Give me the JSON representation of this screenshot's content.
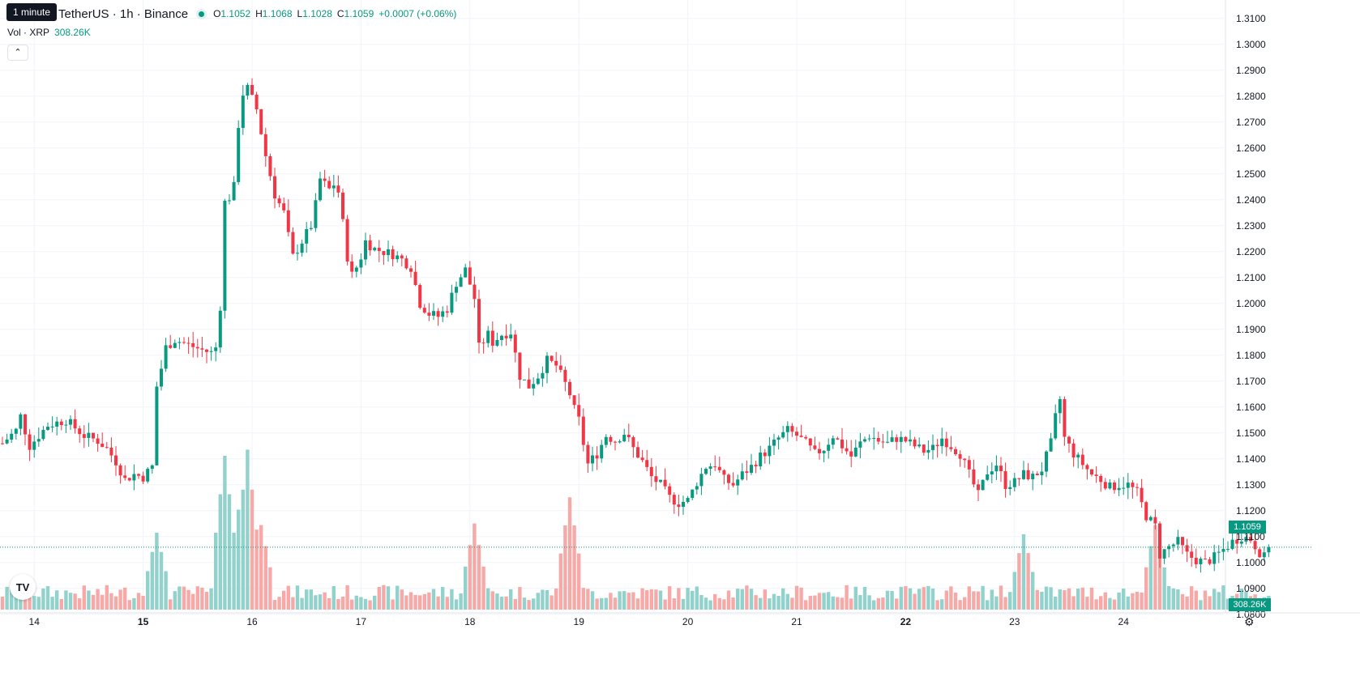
{
  "header": {
    "symbol": "TetherUS · 1h · Binance",
    "tooltip": "1 minute",
    "ohlc": {
      "o_label": "O",
      "o": "1.1052",
      "h_label": "H",
      "h": "1.1068",
      "l_label": "L",
      "l": "1.1028",
      "c_label": "C",
      "c": "1.1059",
      "change": "+0.0007 (+0.06%)"
    },
    "volume_label": "Vol · XRP",
    "volume_value": "308.26K"
  },
  "price_tag": "1.1059",
  "volume_tag": "308.26K",
  "logo_text": "TV",
  "colors": {
    "up": "#089981",
    "down": "#f23645",
    "up_vol": "#92d2cc",
    "down_vol": "#f7a9a7",
    "grid": "#f0f3fa"
  },
  "chart_data": {
    "type": "candlestick",
    "title": "",
    "y_ticks": [
      "1.3100",
      "1.3000",
      "1.2900",
      "1.2800",
      "1.2700",
      "1.2600",
      "1.2500",
      "1.2400",
      "1.2300",
      "1.2200",
      "1.2100",
      "1.2000",
      "1.1900",
      "1.1800",
      "1.1700",
      "1.1600",
      "1.1500",
      "1.1400",
      "1.1300",
      "1.1200",
      "1.1100",
      "1.1000",
      "1.0900",
      "1.0800"
    ],
    "ylim": [
      1.0765,
      1.314
    ],
    "x_ticks": [
      {
        "label": "14",
        "bold": false,
        "bar": 7
      },
      {
        "label": "15",
        "bold": true,
        "bar": 31
      },
      {
        "label": "16",
        "bold": false,
        "bar": 55
      },
      {
        "label": "17",
        "bold": false,
        "bar": 79
      },
      {
        "label": "18",
        "bold": false,
        "bar": 103
      },
      {
        "label": "19",
        "bold": false,
        "bar": 127
      },
      {
        "label": "20",
        "bold": false,
        "bar": 151
      },
      {
        "label": "21",
        "bold": false,
        "bar": 175
      },
      {
        "label": "22",
        "bold": true,
        "bar": 199
      },
      {
        "label": "23",
        "bold": false,
        "bar": 223
      },
      {
        "label": "24",
        "bold": false,
        "bar": 247
      }
    ],
    "anchor_points": [
      [
        0,
        1.146
      ],
      [
        3,
        1.151
      ],
      [
        4,
        1.1565
      ],
      [
        6,
        1.145
      ],
      [
        10,
        1.153
      ],
      [
        14,
        1.155
      ],
      [
        18,
        1.149
      ],
      [
        21,
        1.147
      ],
      [
        23,
        1.144
      ],
      [
        25,
        1.139
      ],
      [
        27,
        1.132
      ],
      [
        29,
        1.134
      ],
      [
        31,
        1.133
      ],
      [
        33,
        1.137
      ],
      [
        34,
        1.168
      ],
      [
        35,
        1.175
      ],
      [
        36,
        1.183
      ],
      [
        38,
        1.186
      ],
      [
        41,
        1.184
      ],
      [
        44,
        1.182
      ],
      [
        46,
        1.181
      ],
      [
        47,
        1.183
      ],
      [
        48,
        1.199
      ],
      [
        49,
        1.239
      ],
      [
        50,
        1.241
      ],
      [
        51,
        1.245
      ],
      [
        52,
        1.269
      ],
      [
        53,
        1.281
      ],
      [
        54,
        1.283
      ],
      [
        56,
        1.275
      ],
      [
        58,
        1.257
      ],
      [
        60,
        1.242
      ],
      [
        62,
        1.235
      ],
      [
        63,
        1.226
      ],
      [
        64,
        1.218
      ],
      [
        66,
        1.224
      ],
      [
        68,
        1.23
      ],
      [
        69,
        1.238
      ],
      [
        70,
        1.248
      ],
      [
        72,
        1.244
      ],
      [
        73,
        1.246
      ],
      [
        74,
        1.243
      ],
      [
        75,
        1.231
      ],
      [
        76,
        1.218
      ],
      [
        77,
        1.211
      ],
      [
        78,
        1.214
      ],
      [
        79,
        1.218
      ],
      [
        80,
        1.224
      ],
      [
        82,
        1.221
      ],
      [
        84,
        1.22
      ],
      [
        86,
        1.219
      ],
      [
        88,
        1.217
      ],
      [
        90,
        1.214
      ],
      [
        92,
        1.2
      ],
      [
        94,
        1.196
      ],
      [
        96,
        1.195
      ],
      [
        98,
        1.198
      ],
      [
        100,
        1.208
      ],
      [
        102,
        1.213
      ],
      [
        104,
        1.202
      ],
      [
        105,
        1.183
      ],
      [
        107,
        1.188
      ],
      [
        108,
        1.185
      ],
      [
        110,
        1.188
      ],
      [
        112,
        1.189
      ],
      [
        114,
        1.172
      ],
      [
        116,
        1.168
      ],
      [
        118,
        1.172
      ],
      [
        120,
        1.178
      ],
      [
        122,
        1.176
      ],
      [
        124,
        1.169
      ],
      [
        125,
        1.165
      ],
      [
        126,
        1.159
      ],
      [
        127,
        1.155
      ],
      [
        128,
        1.146
      ],
      [
        129,
        1.138
      ],
      [
        131,
        1.142
      ],
      [
        133,
        1.149
      ],
      [
        135,
        1.147
      ],
      [
        137,
        1.15
      ],
      [
        139,
        1.144
      ],
      [
        141,
        1.139
      ],
      [
        143,
        1.133
      ],
      [
        145,
        1.13
      ],
      [
        147,
        1.125
      ],
      [
        149,
        1.123
      ],
      [
        151,
        1.124
      ],
      [
        153,
        1.131
      ],
      [
        155,
        1.137
      ],
      [
        157,
        1.138
      ],
      [
        159,
        1.132
      ],
      [
        161,
        1.13
      ],
      [
        163,
        1.134
      ],
      [
        165,
        1.137
      ],
      [
        167,
        1.141
      ],
      [
        169,
        1.144
      ],
      [
        171,
        1.148
      ],
      [
        173,
        1.151
      ],
      [
        175,
        1.149
      ],
      [
        177,
        1.146
      ],
      [
        179,
        1.142
      ],
      [
        181,
        1.144
      ],
      [
        183,
        1.149
      ],
      [
        185,
        1.145
      ],
      [
        187,
        1.141
      ],
      [
        189,
        1.146
      ],
      [
        191,
        1.149
      ],
      [
        193,
        1.147
      ],
      [
        195,
        1.146
      ],
      [
        197,
        1.148
      ],
      [
        199,
        1.147
      ],
      [
        201,
        1.145
      ],
      [
        203,
        1.143
      ],
      [
        205,
        1.144
      ],
      [
        207,
        1.148
      ],
      [
        209,
        1.145
      ],
      [
        211,
        1.142
      ],
      [
        213,
        1.134
      ],
      [
        215,
        1.126
      ],
      [
        217,
        1.135
      ],
      [
        219,
        1.138
      ],
      [
        221,
        1.13
      ],
      [
        223,
        1.131
      ],
      [
        225,
        1.134
      ],
      [
        227,
        1.133
      ],
      [
        229,
        1.136
      ],
      [
        231,
        1.146
      ],
      [
        232,
        1.156
      ],
      [
        233,
        1.163
      ],
      [
        234,
        1.148
      ],
      [
        236,
        1.142
      ],
      [
        238,
        1.138
      ],
      [
        240,
        1.134
      ],
      [
        242,
        1.132
      ],
      [
        244,
        1.129
      ],
      [
        246,
        1.13
      ],
      [
        248,
        1.13
      ],
      [
        250,
        1.127
      ],
      [
        252,
        1.118
      ],
      [
        254,
        1.114
      ],
      [
        255,
        1.103
      ],
      [
        257,
        1.106
      ],
      [
        259,
        1.108
      ],
      [
        261,
        1.103
      ],
      [
        263,
        1.101
      ],
      [
        265,
        1.1
      ],
      [
        267,
        1.102
      ],
      [
        269,
        1.105
      ],
      [
        271,
        1.108
      ],
      [
        273,
        1.11
      ],
      [
        275,
        1.109
      ],
      [
        277,
        1.104
      ],
      [
        278,
        1.102
      ],
      [
        279,
        1.1059
      ]
    ],
    "volume_peaks": [
      {
        "bar": 34,
        "value": 0.5
      },
      {
        "bar": 49,
        "value": 1.0
      },
      {
        "bar": 52,
        "value": 0.65
      },
      {
        "bar": 54,
        "value": 1.04
      },
      {
        "bar": 57,
        "value": 0.55
      },
      {
        "bar": 104,
        "value": 0.56
      },
      {
        "bar": 125,
        "value": 0.73
      },
      {
        "bar": 225,
        "value": 0.49
      },
      {
        "bar": 254,
        "value": 0.55
      }
    ],
    "total_bars": 280,
    "last_close": 1.1059
  }
}
